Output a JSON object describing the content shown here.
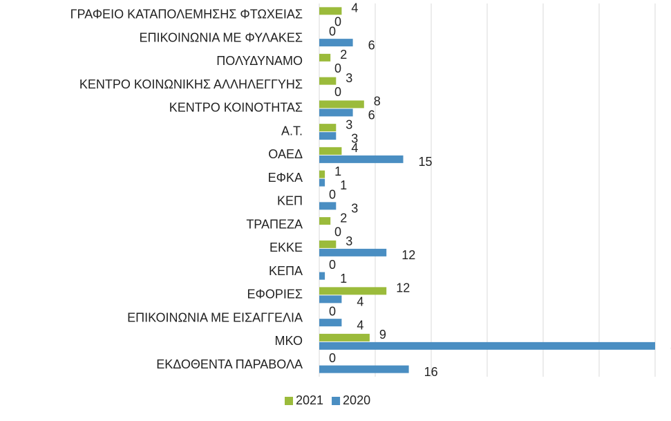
{
  "chart_data": {
    "type": "bar",
    "orientation": "horizontal",
    "categories": [
      "ΓΡΑΦΕΙΟ ΚΑΤΑΠΟΛΕΜΗΣΗΣ ΦΤΩΧΕΙΑΣ",
      "ΕΠΙΚΟΙΝΩΝΙΑ ΜΕ ΦΥΛΑΚΕΣ",
      "ΠΟΛΥΔΥΝΑΜΟ",
      "ΚΕΝΤΡΟ ΚΟΙΝΩΝΙΚΗΣ ΑΛΛΗΛΕΓΓΥΗΣ",
      "ΚΕΝΤΡΟ ΚΟΙΝΟΤΗΤΑΣ",
      "Α.Τ.",
      "ΟΑΕΔ",
      "ΕΦΚΑ",
      "ΚΕΠ",
      "ΤΡΑΠΕΖΑ",
      "ΕΚΚΕ",
      "ΚΕΠΑ",
      "ΕΦΟΡΙΕΣ",
      "ΕΠΙΚΟΙΝΩΝΙΑ ΜΕ ΕΙΣΑΓΓΕΛΙΑ",
      "ΜΚΟ",
      "ΕΚΔΟΘΕΝΤΑ ΠΑΡΑΒΟΛΑ"
    ],
    "series": [
      {
        "name": "2021",
        "color": "#9bbb3b",
        "values": [
          4,
          0,
          2,
          3,
          8,
          3,
          4,
          1,
          0,
          2,
          3,
          0,
          12,
          0,
          9,
          0
        ]
      },
      {
        "name": "2020",
        "color": "#4a8ec2",
        "values": [
          0,
          6,
          0,
          0,
          6,
          3,
          15,
          1,
          3,
          0,
          12,
          1,
          4,
          4,
          60,
          16
        ]
      }
    ],
    "xlim": [
      0,
      60
    ],
    "xticks": [
      0,
      10,
      20,
      30,
      40,
      50,
      60
    ],
    "grid": true,
    "legend": "bottom"
  }
}
